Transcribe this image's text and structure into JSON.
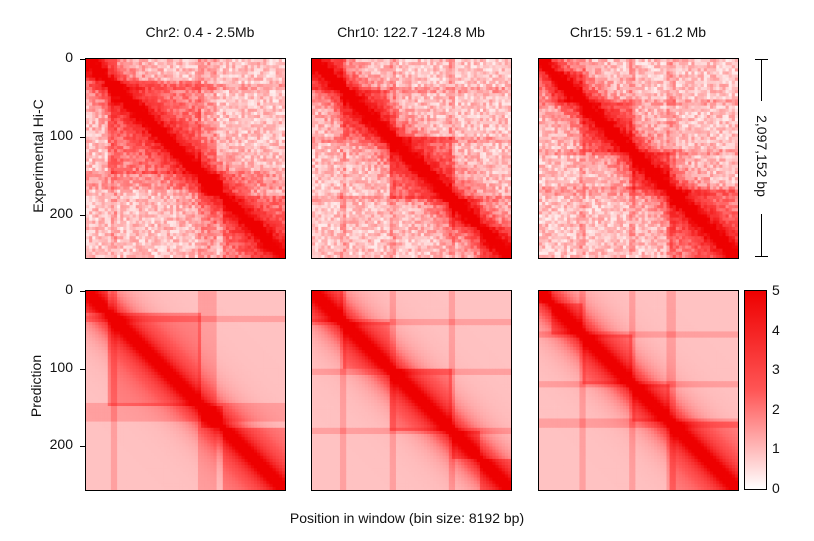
{
  "chart_data": {
    "type": "heatmap",
    "columns": [
      {
        "title": "Chr2: 0.4 - 2.5Mb",
        "boundaries": [
          0,
          30,
          150,
          175,
          256
        ],
        "stripes": [
          35,
          150,
          162
        ]
      },
      {
        "title": "Chr10: 122.7 -124.8 Mb",
        "boundaries": [
          0,
          40,
          100,
          180,
          215,
          256
        ],
        "stripes": [
          40,
          105,
          180
        ]
      },
      {
        "title": "Chr15: 59.1 - 61.2 Mb",
        "boundaries": [
          0,
          18,
          55,
          120,
          170,
          256
        ],
        "stripes": [
          55,
          120,
          170
        ]
      }
    ],
    "rows": [
      {
        "label": "Experimental Hi-C",
        "noise": true
      },
      {
        "label": "Prediction",
        "noise": false
      }
    ],
    "ylim": [
      0,
      256
    ],
    "yticks": [
      "0",
      "100",
      "200"
    ],
    "xlabel": "Position in window (bin size: 8192 bp)",
    "scale_bar_label": "2,097,152 bp",
    "colorbar": {
      "min": 0,
      "max": 5,
      "ticks": [
        "5",
        "4",
        "3",
        "2",
        "1",
        "0"
      ]
    },
    "colors": {
      "high": "#ee0000",
      "mid": "#ff5555",
      "low": "#ffffff"
    }
  }
}
